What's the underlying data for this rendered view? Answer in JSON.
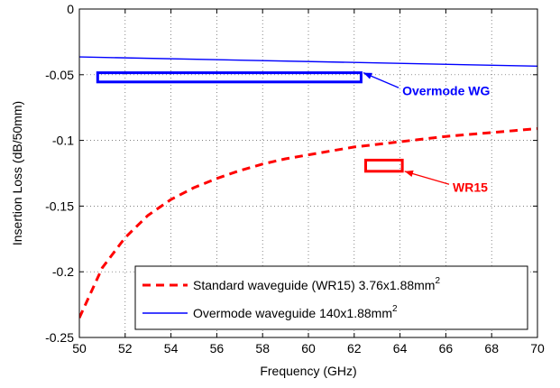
{
  "chart_data": {
    "type": "line",
    "xlabel": "Frequency (GHz)",
    "ylabel": "Insertion Loss (dB/50mm)",
    "xlim": [
      50,
      70
    ],
    "ylim": [
      -0.25,
      0
    ],
    "xticks": [
      50,
      52,
      54,
      56,
      58,
      60,
      62,
      64,
      66,
      68,
      70
    ],
    "yticks": [
      0,
      -0.05,
      -0.1,
      -0.15,
      -0.2,
      -0.25
    ],
    "ytick_labels": [
      "0",
      "-0.05",
      "-0.1",
      "-0.15",
      "-0.2",
      "-0.25"
    ],
    "grid": true,
    "legend_position": "bottom-right",
    "series": [
      {
        "name": "Standard waveguide  (WR15) 3.76x1.88mm",
        "name_superscript": "2",
        "color": "#ff0000",
        "style": "dashed",
        "x": [
          50,
          51,
          52,
          53,
          54,
          55,
          56,
          57,
          58,
          59,
          60,
          61,
          62,
          63,
          64,
          65,
          66,
          67,
          68,
          69,
          70
        ],
        "y": [
          -0.235,
          -0.197,
          -0.174,
          -0.157,
          -0.145,
          -0.136,
          -0.129,
          -0.123,
          -0.118,
          -0.114,
          -0.111,
          -0.108,
          -0.105,
          -0.103,
          -0.101,
          -0.099,
          -0.097,
          -0.0955,
          -0.094,
          -0.0925,
          -0.091
        ]
      },
      {
        "name": "Overmode waveguide 140x1.88mm",
        "name_superscript": "2",
        "color": "#0000ff",
        "style": "solid",
        "x": [
          50,
          70
        ],
        "y": [
          -0.0365,
          -0.0435
        ]
      }
    ],
    "annotations": [
      {
        "text": "Overmode WG",
        "color": "#0000ff",
        "box_x": [
          50.8,
          62.3
        ],
        "box_y": [
          -0.0485,
          -0.0555
        ],
        "arrow_head": [
          62.4,
          -0.0485
        ],
        "text_anchor": [
          64.1,
          -0.062
        ]
      },
      {
        "text": "WR15",
        "color": "#ff0000",
        "box_x": [
          62.5,
          64.1
        ],
        "box_y": [
          -0.115,
          -0.1235
        ],
        "arrow_head": [
          64.2,
          -0.1235
        ],
        "text_anchor": [
          66.3,
          -0.1355
        ]
      }
    ]
  }
}
